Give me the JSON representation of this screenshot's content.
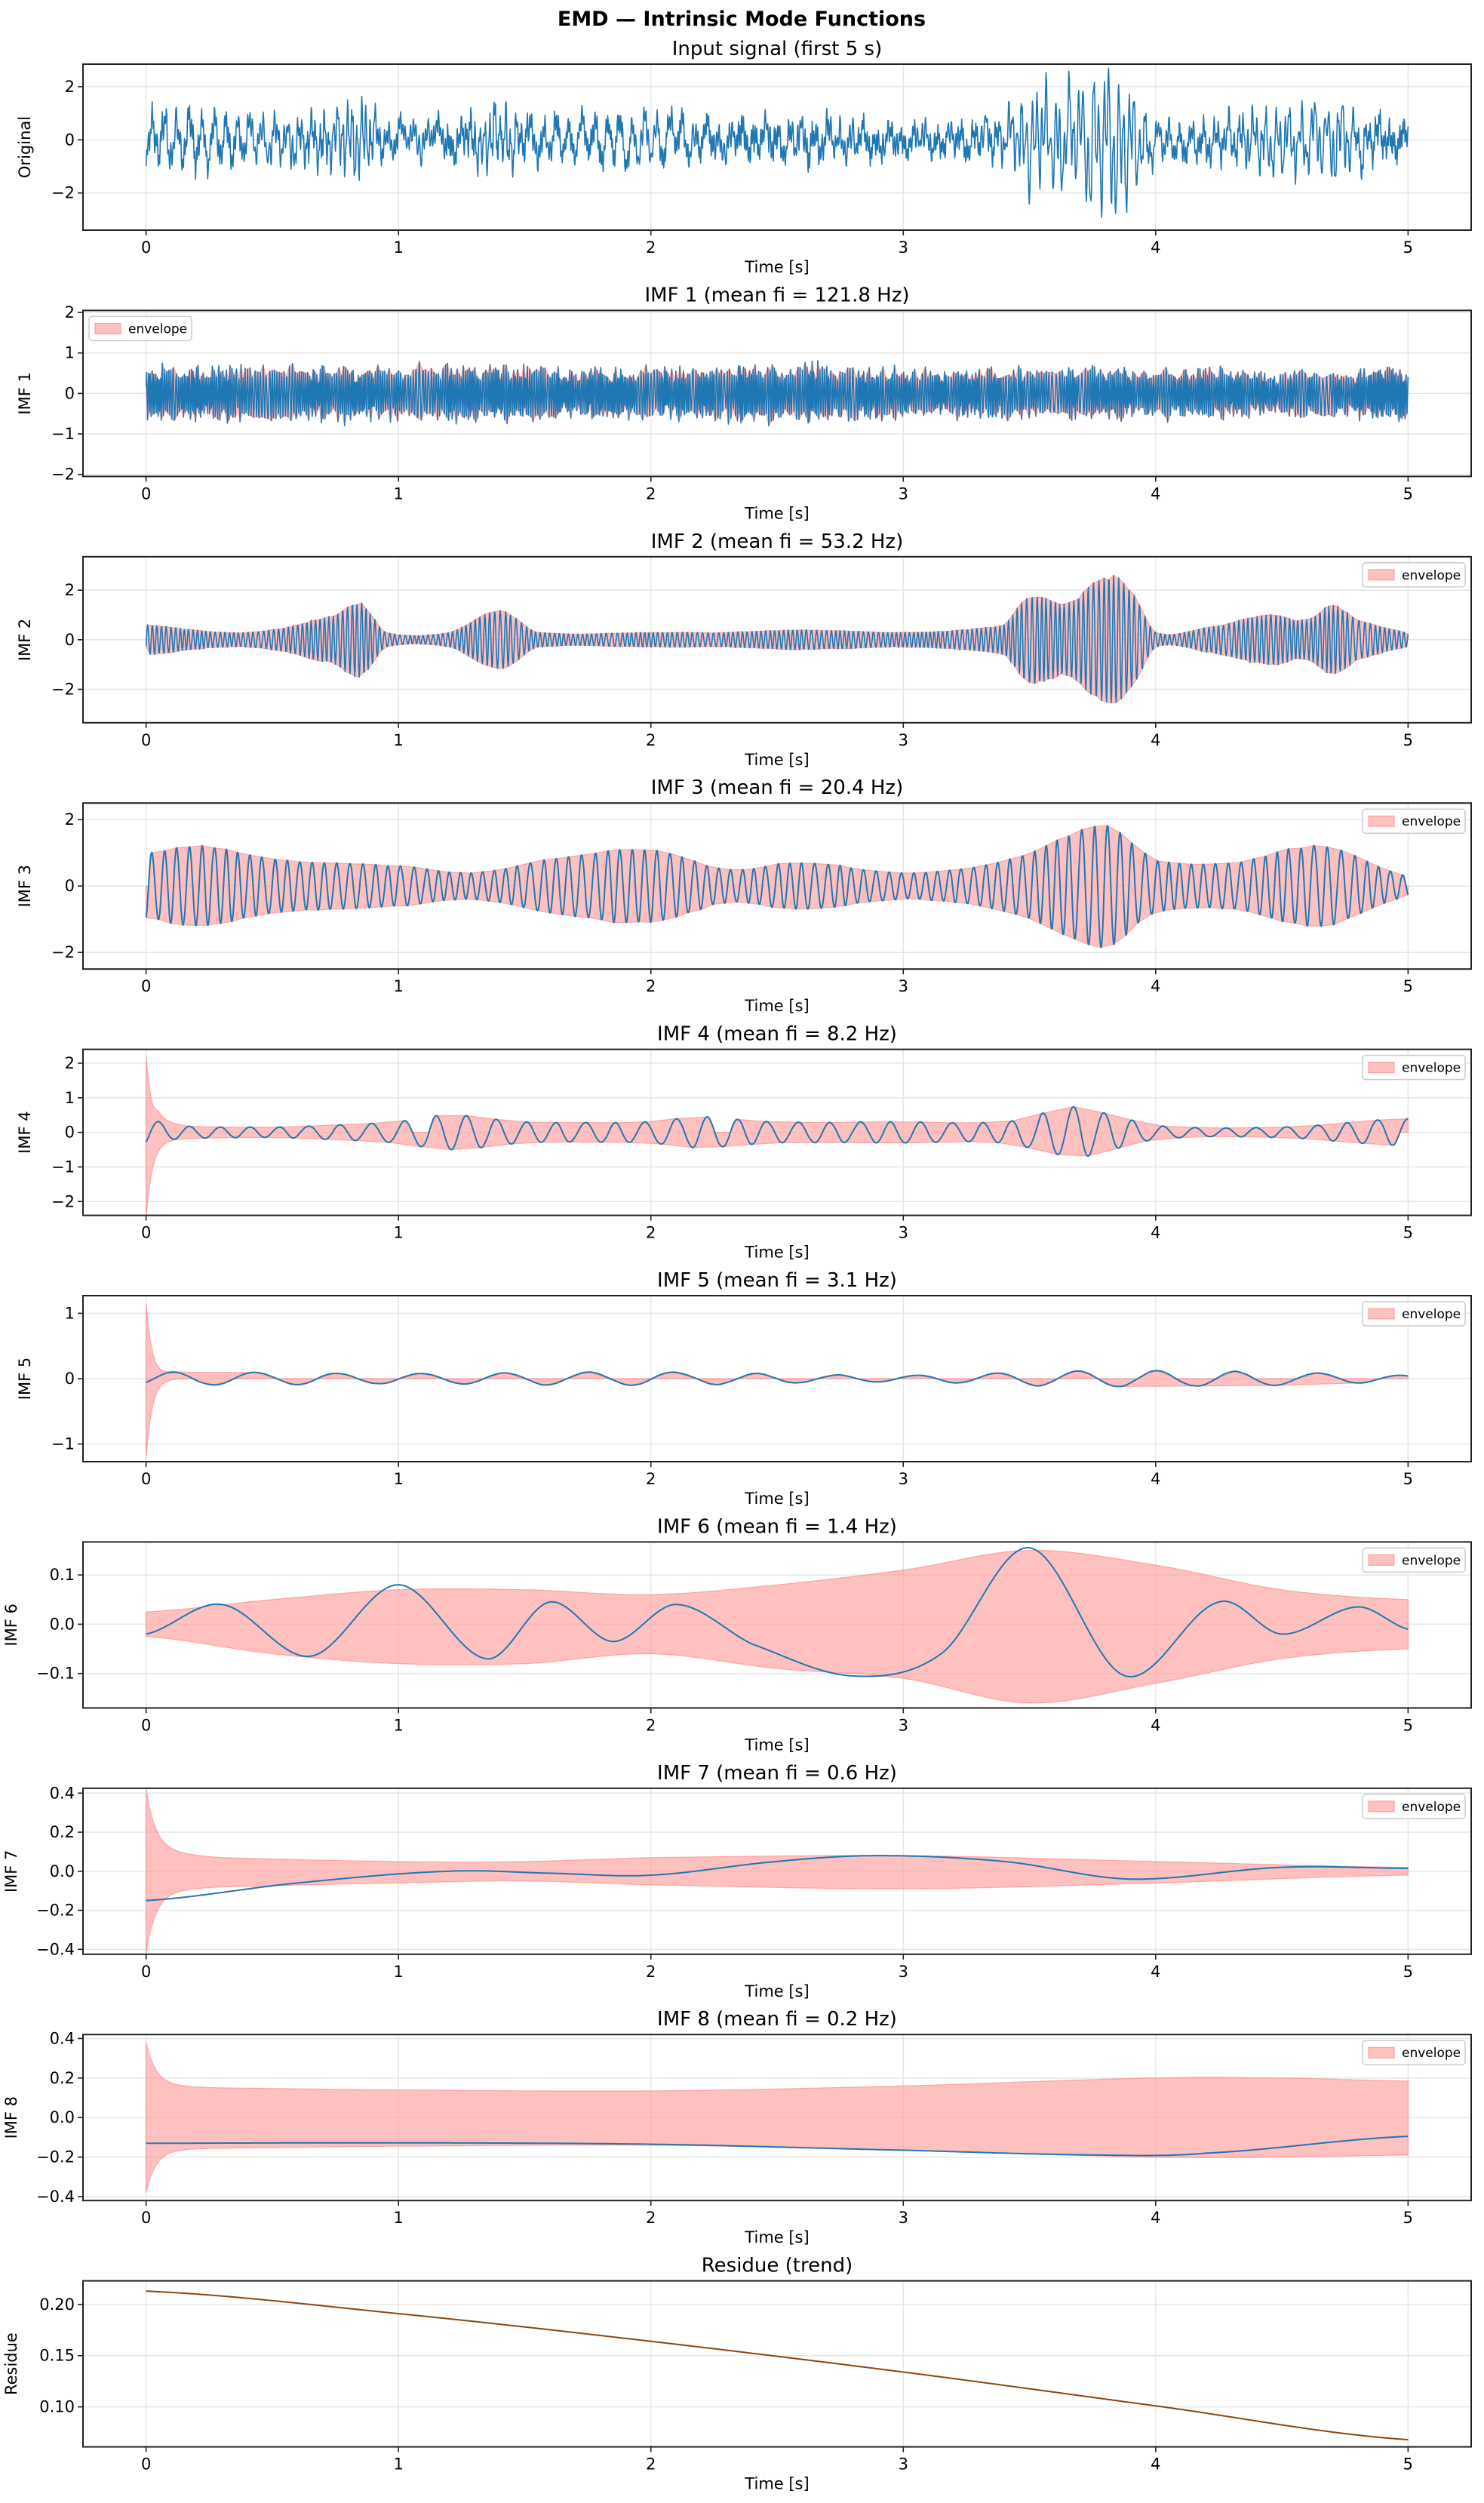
{
  "suptitle": "EMD — Intrinsic Mode Functions",
  "colors": {
    "signal": "#1f77b4",
    "envelope_fill": "#ff9999",
    "envelope_edge": "#ff6b6b",
    "residue": "#8b4513",
    "grid": "#e6e6e6"
  },
  "chart_data": [
    {
      "type": "line",
      "title": "Input signal (first 5 s)",
      "xlabel": "Time [s]",
      "ylabel": "Original",
      "xlim": [
        -0.25,
        5.25
      ],
      "xticks": [
        0,
        1,
        2,
        3,
        4,
        5
      ],
      "xtick_labels": [
        "0",
        "1",
        "2",
        "3",
        "4",
        "5"
      ],
      "ylim": [
        -3.4,
        2.85
      ],
      "yticks": [
        -2,
        0,
        2
      ],
      "ytick_labels": [
        "−2",
        "0",
        "2"
      ],
      "grid": true,
      "series": [
        {
          "kind": "sum-of-components",
          "color": "#1f77b4",
          "range": [
            -3.1,
            2.7
          ]
        }
      ]
    },
    {
      "type": "line",
      "title": "IMF 1   (mean fi = 121.8 Hz)",
      "xlabel": "Time [s]",
      "ylabel": "IMF 1",
      "mean_fi_hz": 121.8,
      "xlim": [
        -0.25,
        5.25
      ],
      "xticks": [
        0,
        1,
        2,
        3,
        4,
        5
      ],
      "xtick_labels": [
        "0",
        "1",
        "2",
        "3",
        "4",
        "5"
      ],
      "ylim": [
        -2.05,
        2.05
      ],
      "yticks": [
        -2,
        -1,
        0,
        1,
        2
      ],
      "ytick_labels": [
        "−2",
        "−1",
        "0",
        "1",
        "2"
      ],
      "grid": true,
      "legend": {
        "label": "envelope",
        "position": "upper-left"
      },
      "series": [
        {
          "kind": "oscillation",
          "color": "#1f77b4",
          "amplitude": {
            "t": [
              0,
              0.5,
              1,
              1.3,
              1.5,
              2,
              2.6,
              3,
              3.5,
              4,
              4.5,
              5
            ],
            "a": [
              0.55,
              0.6,
              0.55,
              0.6,
              0.55,
              0.55,
              0.6,
              0.5,
              0.55,
              0.55,
              0.5,
              0.55
            ]
          }
        }
      ]
    },
    {
      "type": "line",
      "title": "IMF 2   (mean fi = 53.2 Hz)",
      "xlabel": "Time [s]",
      "ylabel": "IMF 2",
      "mean_fi_hz": 53.2,
      "xlim": [
        -0.25,
        5.25
      ],
      "xticks": [
        0,
        1,
        2,
        3,
        4,
        5
      ],
      "xtick_labels": [
        "0",
        "1",
        "2",
        "3",
        "4",
        "5"
      ],
      "ylim": [
        -3.35,
        3.35
      ],
      "yticks": [
        -2,
        0,
        2
      ],
      "ytick_labels": [
        "−2",
        "0",
        "2"
      ],
      "grid": true,
      "legend": {
        "label": "envelope",
        "position": "upper-right"
      },
      "series": [
        {
          "kind": "oscillation",
          "color": "#1f77b4",
          "amplitude": {
            "t": [
              0,
              0.3,
              0.5,
              0.75,
              0.85,
              0.95,
              1.2,
              1.4,
              1.55,
              2,
              2.3,
              2.6,
              3,
              3.4,
              3.5,
              3.65,
              3.8,
              3.9,
              4.0,
              4.2,
              4.45,
              4.6,
              4.7,
              4.8,
              5
            ],
            "a": [
              0.6,
              0.3,
              0.4,
              1.0,
              1.5,
              0.3,
              0.3,
              1.2,
              0.3,
              0.3,
              0.3,
              0.4,
              0.3,
              0.6,
              1.8,
              1.5,
              2.6,
              2.0,
              0.3,
              0.5,
              1.0,
              0.8,
              1.4,
              0.8,
              0.3
            ]
          }
        }
      ]
    },
    {
      "type": "line",
      "title": "IMF 3   (mean fi = 20.4 Hz)",
      "xlabel": "Time [s]",
      "ylabel": "IMF 3",
      "mean_fi_hz": 20.4,
      "xlim": [
        -0.25,
        5.25
      ],
      "xticks": [
        0,
        1,
        2,
        3,
        4,
        5
      ],
      "xtick_labels": [
        "0",
        "1",
        "2",
        "3",
        "4",
        "5"
      ],
      "ylim": [
        -2.5,
        2.5
      ],
      "yticks": [
        -2,
        0,
        2
      ],
      "ytick_labels": [
        "−2",
        "0",
        "2"
      ],
      "grid": true,
      "legend": {
        "label": "envelope",
        "position": "upper-right"
      },
      "series": [
        {
          "kind": "oscillation",
          "color": "#1f77b4",
          "amplitude": {
            "t": [
              0,
              0.2,
              0.5,
              1.0,
              1.3,
              1.6,
              2.0,
              2.3,
              2.6,
              3.0,
              3.3,
              3.5,
              3.8,
              4.0,
              4.3,
              4.65,
              5
            ],
            "a": [
              1.0,
              1.2,
              0.8,
              0.6,
              0.4,
              0.8,
              1.1,
              0.5,
              0.7,
              0.4,
              0.6,
              1.0,
              1.8,
              0.8,
              0.7,
              1.2,
              0.3
            ]
          }
        }
      ]
    },
    {
      "type": "line",
      "title": "IMF 4   (mean fi = 8.2 Hz)",
      "xlabel": "Time [s]",
      "ylabel": "IMF 4",
      "mean_fi_hz": 8.2,
      "xlim": [
        -0.25,
        5.25
      ],
      "xticks": [
        0,
        1,
        2,
        3,
        4,
        5
      ],
      "xtick_labels": [
        "0",
        "1",
        "2",
        "3",
        "4",
        "5"
      ],
      "ylim": [
        -2.4,
        2.4
      ],
      "yticks": [
        -2,
        -1,
        0,
        1,
        2
      ],
      "ytick_labels": [
        "−2",
        "−1",
        "0",
        "1",
        "2"
      ],
      "grid": true,
      "legend": {
        "label": "envelope",
        "position": "upper-right"
      },
      "series": [
        {
          "kind": "oscillation",
          "color": "#1f77b4",
          "edge_spike": 2.2,
          "amplitude": {
            "t": [
              0,
              0.1,
              0.5,
              1,
              1.2,
              1.5,
              2,
              2.2,
              2.5,
              3,
              3.4,
              3.6,
              3.7,
              4,
              4.5,
              5
            ],
            "a": [
              0.4,
              0.2,
              0.15,
              0.3,
              0.5,
              0.3,
              0.3,
              0.45,
              0.3,
              0.3,
              0.3,
              0.6,
              0.7,
              0.2,
              0.15,
              0.4
            ]
          }
        }
      ]
    },
    {
      "type": "line",
      "title": "IMF 5   (mean fi = 3.1 Hz)",
      "xlabel": "Time [s]",
      "ylabel": "IMF 5",
      "mean_fi_hz": 3.1,
      "xlim": [
        -0.25,
        5.25
      ],
      "xticks": [
        0,
        1,
        2,
        3,
        4,
        5
      ],
      "xtick_labels": [
        "0",
        "1",
        "2",
        "3",
        "4",
        "5"
      ],
      "ylim": [
        -1.27,
        1.27
      ],
      "yticks": [
        -1,
        0,
        1
      ],
      "ytick_labels": [
        "−1",
        "0",
        "1"
      ],
      "grid": true,
      "legend": {
        "label": "envelope",
        "position": "upper-right"
      },
      "series": [
        {
          "kind": "oscillation",
          "color": "#1f77b4",
          "edge_spike": 1.15,
          "amplitude": {
            "t": [
              0,
              0.3,
              1,
              2,
              3,
              3.7,
              4.5,
              5
            ],
            "a": [
              0.1,
              0.1,
              0.08,
              0.1,
              0.05,
              0.12,
              0.1,
              0.05
            ]
          }
        }
      ]
    },
    {
      "type": "line",
      "title": "IMF 6   (mean fi = 1.4 Hz)",
      "xlabel": "Time [s]",
      "ylabel": "IMF 6",
      "mean_fi_hz": 1.4,
      "xlim": [
        -0.25,
        5.25
      ],
      "xticks": [
        0,
        1,
        2,
        3,
        4,
        5
      ],
      "xtick_labels": [
        "0",
        "1",
        "2",
        "3",
        "4",
        "5"
      ],
      "ylim": [
        -0.17,
        0.167
      ],
      "yticks": [
        -0.1,
        0,
        0.1
      ],
      "ytick_labels": [
        "−0.1",
        "0.0",
        "0.1"
      ],
      "grid": true,
      "legend": {
        "label": "envelope",
        "position": "upper-right"
      },
      "series": [
        {
          "kind": "points",
          "color": "#1f77b4",
          "t": [
            0,
            0.3,
            0.65,
            1.0,
            1.35,
            1.6,
            1.85,
            2.1,
            2.4,
            2.8,
            3.15,
            3.5,
            3.88,
            4.25,
            4.5,
            4.8,
            5
          ],
          "y": [
            -0.02,
            0.04,
            -0.065,
            0.08,
            -0.07,
            0.045,
            -0.035,
            0.04,
            -0.04,
            -0.105,
            -0.06,
            0.155,
            -0.105,
            0.045,
            -0.02,
            0.035,
            -0.01
          ],
          "envelope_upper": {
            "t": [
              0,
              0.5,
              1,
              1.5,
              2,
              2.5,
              3,
              3.5,
              4,
              4.5,
              5
            ],
            "y": [
              0.025,
              0.05,
              0.07,
              0.07,
              0.06,
              0.08,
              0.11,
              0.15,
              0.12,
              0.07,
              0.05
            ]
          },
          "envelope_lower": {
            "t": [
              0,
              0.5,
              1,
              1.5,
              2,
              2.5,
              3,
              3.5,
              4,
              4.5,
              5
            ],
            "y": [
              -0.025,
              -0.06,
              -0.08,
              -0.08,
              -0.06,
              -0.09,
              -0.11,
              -0.16,
              -0.12,
              -0.07,
              -0.05
            ]
          }
        }
      ]
    },
    {
      "type": "line",
      "title": "IMF 7   (mean fi = 0.6 Hz)",
      "xlabel": "Time [s]",
      "ylabel": "IMF 7",
      "mean_fi_hz": 0.6,
      "xlim": [
        -0.25,
        5.25
      ],
      "xticks": [
        0,
        1,
        2,
        3,
        4,
        5
      ],
      "xtick_labels": [
        "0",
        "1",
        "2",
        "3",
        "4",
        "5"
      ],
      "ylim": [
        -0.425,
        0.425
      ],
      "yticks": [
        -0.4,
        -0.2,
        0,
        0.2,
        0.4
      ],
      "ytick_labels": [
        "−0.4",
        "−0.2",
        "0.0",
        "0.2",
        "0.4"
      ],
      "grid": true,
      "legend": {
        "label": "envelope",
        "position": "upper-right"
      },
      "series": [
        {
          "kind": "points",
          "color": "#1f77b4",
          "edge_spike": 0.32,
          "t": [
            0,
            0.6,
            1.2,
            1.6,
            2,
            2.5,
            2.9,
            3.4,
            3.9,
            4.5,
            5
          ],
          "y": [
            -0.15,
            -0.06,
            0.0,
            -0.01,
            -0.02,
            0.05,
            0.08,
            0.05,
            -0.04,
            0.02,
            0.015
          ],
          "envelope_upper": {
            "t": [
              0,
              0.3,
              1,
              1.5,
              2,
              3,
              4,
              5
            ],
            "y": [
              0.1,
              0.07,
              0.05,
              0.05,
              0.07,
              0.08,
              0.05,
              0.02
            ]
          },
          "envelope_lower": {
            "t": [
              0,
              0.3,
              1,
              1.5,
              2,
              3,
              4,
              5
            ],
            "y": [
              -0.1,
              -0.08,
              -0.06,
              -0.05,
              -0.07,
              -0.09,
              -0.06,
              -0.02
            ]
          }
        }
      ]
    },
    {
      "type": "line",
      "title": "IMF 8   (mean fi = 0.2 Hz)",
      "xlabel": "Time [s]",
      "ylabel": "IMF 8",
      "mean_fi_hz": 0.2,
      "xlim": [
        -0.25,
        5.25
      ],
      "xticks": [
        0,
        1,
        2,
        3,
        4,
        5
      ],
      "xtick_labels": [
        "0",
        "1",
        "2",
        "3",
        "4",
        "5"
      ],
      "ylim": [
        -0.42,
        0.42
      ],
      "yticks": [
        -0.4,
        -0.2,
        0,
        0.2,
        0.4
      ],
      "ytick_labels": [
        "−0.4",
        "−0.2",
        "0.0",
        "0.2",
        "0.4"
      ],
      "grid": true,
      "legend": {
        "label": "envelope",
        "position": "upper-right"
      },
      "series": [
        {
          "kind": "points",
          "color": "#1f77b4",
          "edge_spike": 0.22,
          "t": [
            0,
            1,
            2,
            3,
            3.8,
            4.2,
            5
          ],
          "y": [
            -0.13,
            -0.128,
            -0.135,
            -0.165,
            -0.19,
            -0.18,
            -0.095
          ],
          "envelope_upper": {
            "t": [
              0,
              0.3,
              1,
              2,
              3,
              4,
              4.5,
              5
            ],
            "y": [
              0.16,
              0.15,
              0.14,
              0.135,
              0.16,
              0.2,
              0.2,
              0.185
            ]
          },
          "envelope_lower": {
            "t": [
              0,
              0.3,
              1,
              2,
              3,
              4,
              4.5,
              5
            ],
            "y": [
              -0.16,
              -0.155,
              -0.145,
              -0.14,
              -0.165,
              -0.2,
              -0.2,
              -0.19
            ]
          }
        }
      ]
    },
    {
      "type": "line",
      "title": "Residue (trend)",
      "xlabel": "Time [s]",
      "ylabel": "Residue",
      "xlim": [
        -0.25,
        5.25
      ],
      "xticks": [
        0,
        1,
        2,
        3,
        4,
        5
      ],
      "xtick_labels": [
        "0",
        "1",
        "2",
        "3",
        "4",
        "5"
      ],
      "ylim": [
        0.061,
        0.223
      ],
      "yticks": [
        0.1,
        0.15,
        0.2
      ],
      "ytick_labels": [
        "0.10",
        "0.15",
        "0.20"
      ],
      "grid": true,
      "series": [
        {
          "kind": "points",
          "color": "#8b4513",
          "t": [
            0,
            1,
            2,
            3,
            4,
            5
          ],
          "y": [
            0.213,
            0.191,
            0.164,
            0.134,
            0.101,
            0.068
          ]
        }
      ]
    }
  ]
}
